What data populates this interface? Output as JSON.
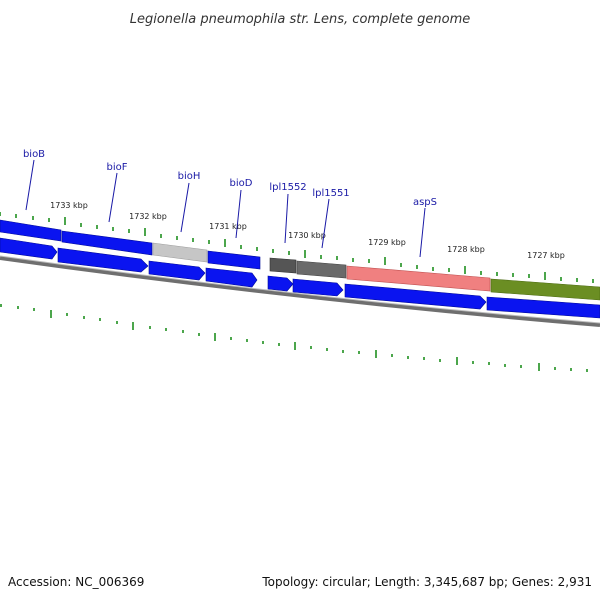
{
  "title": "Legionella pneumophila str. Lens, complete genome",
  "footer": {
    "accession": "Accession: NC_006369",
    "summary": "Topology: circular; Length: 3,345,687 bp; Genes: 2,931"
  },
  "colors": {
    "gene_blue": "#0a14f0",
    "gene_blue_dark": "#000a9a",
    "gene_label": "#1a1aa6",
    "tick_green": "#118811",
    "backbone_gray": "#777777",
    "segment_light_gray": "#bdbdbd",
    "segment_dark_gray": "#555555",
    "segment_pink": "#f08080",
    "segment_olive": "#6b8e23"
  },
  "kbp_ticks": [
    "1733 kbp",
    "1732 kbp",
    "1731 kbp",
    "1730 kbp",
    "1729 kbp",
    "1728 kbp",
    "1727 kbp"
  ],
  "gene_labels": [
    "bioB",
    "bioF",
    "bioH",
    "bioD",
    "lpl1552",
    "lpl1551",
    "aspS"
  ]
}
